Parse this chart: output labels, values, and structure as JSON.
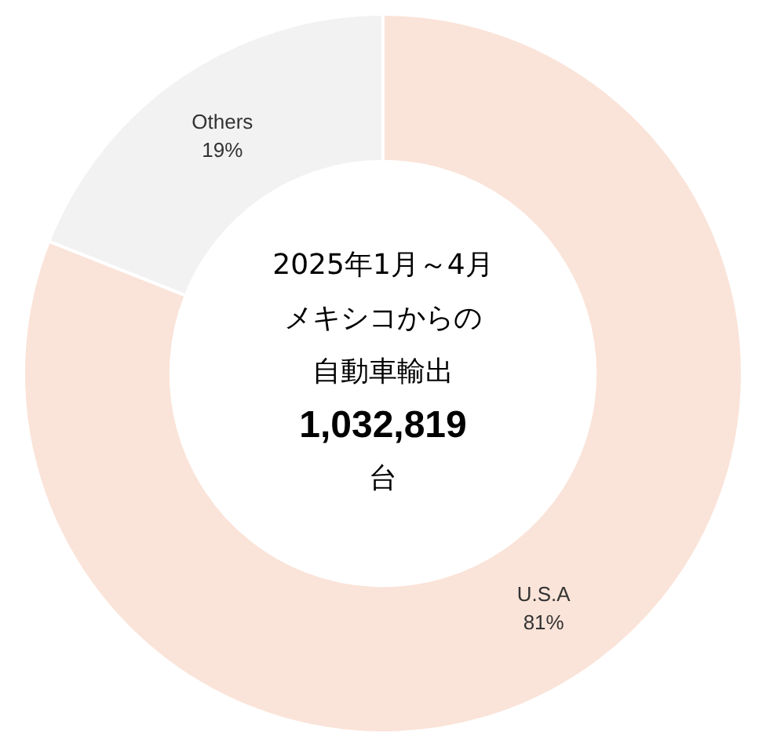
{
  "chart_data": {
    "type": "donut",
    "categories": [
      "U.S.A",
      "Others"
    ],
    "values": [
      81,
      19
    ],
    "colors": [
      "#fae3d8",
      "#f2f2f2"
    ],
    "value_labels": [
      "81%",
      "19%"
    ],
    "annotations": [
      "2025年1月～4月",
      "メキシコからの",
      "自動車輸出",
      "1,032,819",
      "台"
    ],
    "legend": false
  }
}
